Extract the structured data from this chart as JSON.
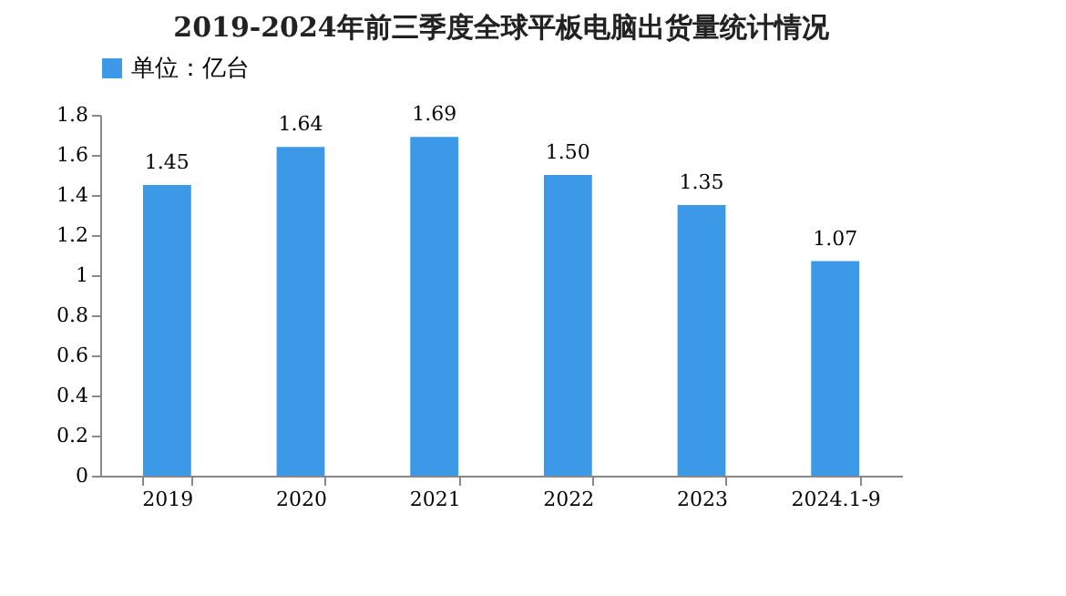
{
  "chart_data": {
    "type": "bar",
    "title": "2019-2024年前三季度全球平板电脑出货量统计情况",
    "categories": [
      "2019",
      "2020",
      "2021",
      "2022",
      "2023",
      "2024.1-9"
    ],
    "series": [
      {
        "name": "单位：亿台",
        "color": "#3b99e8",
        "values": [
          1.45,
          1.64,
          1.69,
          1.5,
          1.35,
          1.07
        ]
      }
    ],
    "value_labels": [
      "1.45",
      "1.64",
      "1.69",
      "1.50",
      "1.35",
      "1.07"
    ],
    "ylim": [
      0,
      1.8
    ],
    "yticks": [
      0,
      0.2,
      0.4,
      0.6,
      0.8,
      1,
      1.2,
      1.4,
      1.6,
      1.8
    ],
    "grid": false,
    "legend": "top"
  }
}
